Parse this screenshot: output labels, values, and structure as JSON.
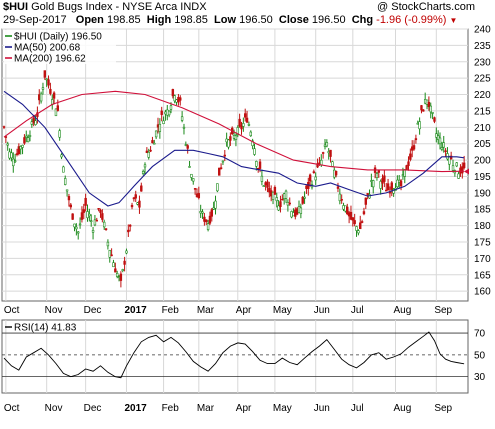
{
  "header": {
    "symbol": "$HUI",
    "name": "Gold Bugs Index - NYSE Arca INDX",
    "watermark": "@ StockCharts.com",
    "date": "29-Sep-2017",
    "open_label": "Open",
    "open_value": "198.85",
    "high_label": "High",
    "high_value": "198.85",
    "low_label": "Low",
    "low_value": "196.50",
    "close_label": "Close",
    "close_value": "196.50",
    "chg_label": "Chg",
    "chg_value": "-1.96 (-0.99%)",
    "chg_arrow": "▼"
  },
  "legend": {
    "price": "$HUI (Daily) 196.50",
    "ma50": "MA(50) 200.68",
    "ma200": "MA(200) 196.62",
    "rsi": "RSI(14) 41.83"
  },
  "colors": {
    "price": "#1a8a1a",
    "price_down": "#c01010",
    "ma50": "#1a1a8c",
    "ma200": "#d0103a",
    "rsi": "#000000",
    "grid": "#d8d8d8",
    "frame": "#666666"
  },
  "chart_data": [
    {
      "type": "candlestick",
      "series": [
        {
          "name": "$HUI (Daily)",
          "last": 196.5
        },
        {
          "name": "MA(50)",
          "last": 200.68
        },
        {
          "name": "MA(200)",
          "last": 196.62
        }
      ],
      "x_tick_labels": [
        "Oct",
        "Nov",
        "Dec",
        "2017",
        "Feb",
        "Mar",
        "Apr",
        "May",
        "Jun",
        "Jul",
        "Aug",
        "Sep"
      ],
      "y_tick_labels": [
        "240",
        "235",
        "230",
        "225",
        "220",
        "215",
        "210",
        "205",
        "200",
        "195",
        "190",
        "185",
        "180",
        "175",
        "170",
        "165",
        "160"
      ],
      "ylim": [
        157,
        240
      ],
      "grid": true,
      "close_points": [
        [
          0,
          210
        ],
        [
          3,
          202
        ],
        [
          6,
          201
        ],
        [
          10,
          205
        ],
        [
          14,
          209
        ],
        [
          18,
          214
        ],
        [
          22,
          226
        ],
        [
          26,
          220
        ],
        [
          29,
          215
        ],
        [
          32,
          197
        ],
        [
          36,
          185
        ],
        [
          40,
          178
        ],
        [
          44,
          186
        ],
        [
          48,
          180
        ],
        [
          52,
          185
        ],
        [
          56,
          175
        ],
        [
          60,
          167
        ],
        [
          63,
          162
        ],
        [
          66,
          173
        ],
        [
          70,
          188
        ],
        [
          73,
          186
        ],
        [
          76,
          200
        ],
        [
          80,
          205
        ],
        [
          84,
          212
        ],
        [
          88,
          215
        ],
        [
          92,
          221
        ],
        [
          95,
          217
        ],
        [
          98,
          206
        ],
        [
          101,
          196
        ],
        [
          104,
          189
        ],
        [
          107,
          183
        ],
        [
          110,
          181
        ],
        [
          113,
          185
        ],
        [
          116,
          196
        ],
        [
          120,
          205
        ],
        [
          124,
          207
        ],
        [
          128,
          210
        ],
        [
          131,
          213
        ],
        [
          134,
          207
        ],
        [
          137,
          198
        ],
        [
          140,
          193
        ],
        [
          143,
          190
        ],
        [
          146,
          188
        ],
        [
          149,
          187
        ],
        [
          152,
          190
        ],
        [
          155,
          185
        ],
        [
          158,
          183
        ],
        [
          161,
          187
        ],
        [
          164,
          192
        ],
        [
          167,
          195
        ],
        [
          170,
          198
        ],
        [
          174,
          205
        ],
        [
          177,
          198
        ],
        [
          180,
          192
        ],
        [
          183,
          187
        ],
        [
          186,
          183
        ],
        [
          189,
          180
        ],
        [
          192,
          179
        ],
        [
          195,
          186
        ],
        [
          198,
          193
        ],
        [
          201,
          196
        ],
        [
          204,
          193
        ],
        [
          207,
          191
        ],
        [
          211,
          193
        ],
        [
          214,
          192
        ],
        [
          217,
          198
        ],
        [
          220,
          202
        ],
        [
          223,
          210
        ],
        [
          226,
          216
        ],
        [
          228,
          219
        ],
        [
          231,
          213
        ],
        [
          233,
          208
        ],
        [
          236,
          205
        ],
        [
          239,
          202
        ],
        [
          242,
          199
        ],
        [
          245,
          197
        ],
        [
          248,
          197
        ]
      ],
      "ma50_points": [
        [
          0,
          221
        ],
        [
          10,
          217
        ],
        [
          22,
          210
        ],
        [
          34,
          200
        ],
        [
          46,
          190
        ],
        [
          56,
          186
        ],
        [
          62,
          187
        ],
        [
          70,
          192
        ],
        [
          80,
          198
        ],
        [
          92,
          203
        ],
        [
          102,
          203
        ],
        [
          110,
          202
        ],
        [
          118,
          201
        ],
        [
          128,
          198
        ],
        [
          138,
          197
        ],
        [
          148,
          196
        ],
        [
          158,
          193
        ],
        [
          168,
          192
        ],
        [
          176,
          193
        ],
        [
          186,
          191
        ],
        [
          196,
          189
        ],
        [
          206,
          190
        ],
        [
          216,
          192
        ],
        [
          226,
          196
        ],
        [
          236,
          201
        ],
        [
          244,
          201
        ],
        [
          248,
          200.7
        ]
      ],
      "ma200_points": [
        [
          0,
          207
        ],
        [
          12,
          212
        ],
        [
          26,
          217
        ],
        [
          42,
          220
        ],
        [
          60,
          221
        ],
        [
          76,
          220
        ],
        [
          96,
          216
        ],
        [
          116,
          211
        ],
        [
          136,
          205
        ],
        [
          156,
          200
        ],
        [
          176,
          198
        ],
        [
          196,
          197
        ],
        [
          216,
          197
        ],
        [
          236,
          196.5
        ],
        [
          248,
          196.6
        ]
      ]
    },
    {
      "type": "line",
      "series": [
        {
          "name": "RSI(14)",
          "last": 41.83
        }
      ],
      "x_tick_labels": [
        "Oct",
        "Nov",
        "Dec",
        "2017",
        "Feb",
        "Mar",
        "Apr",
        "May",
        "Jun",
        "Jul",
        "Aug",
        "Sep"
      ],
      "y_tick_labels": [
        "70",
        "50",
        "30"
      ],
      "ylim": [
        15,
        82
      ],
      "reference_lines": [
        70,
        50,
        30
      ],
      "points": [
        [
          0,
          47
        ],
        [
          4,
          40
        ],
        [
          8,
          36
        ],
        [
          12,
          48
        ],
        [
          16,
          52
        ],
        [
          20,
          56
        ],
        [
          24,
          50
        ],
        [
          28,
          42
        ],
        [
          32,
          33
        ],
        [
          36,
          30
        ],
        [
          40,
          32
        ],
        [
          44,
          37
        ],
        [
          48,
          35
        ],
        [
          52,
          40
        ],
        [
          56,
          34
        ],
        [
          60,
          30
        ],
        [
          63,
          29
        ],
        [
          66,
          40
        ],
        [
          70,
          52
        ],
        [
          74,
          62
        ],
        [
          78,
          66
        ],
        [
          82,
          68
        ],
        [
          86,
          62
        ],
        [
          90,
          66
        ],
        [
          94,
          61
        ],
        [
          98,
          53
        ],
        [
          102,
          44
        ],
        [
          106,
          39
        ],
        [
          110,
          35
        ],
        [
          114,
          42
        ],
        [
          118,
          52
        ],
        [
          122,
          58
        ],
        [
          126,
          61
        ],
        [
          130,
          60
        ],
        [
          134,
          53
        ],
        [
          138,
          45
        ],
        [
          142,
          42
        ],
        [
          146,
          42
        ],
        [
          150,
          47
        ],
        [
          154,
          43
        ],
        [
          158,
          41
        ],
        [
          162,
          47
        ],
        [
          166,
          53
        ],
        [
          170,
          58
        ],
        [
          174,
          64
        ],
        [
          178,
          55
        ],
        [
          182,
          46
        ],
        [
          186,
          41
        ],
        [
          190,
          38
        ],
        [
          194,
          43
        ],
        [
          198,
          50
        ],
        [
          202,
          52
        ],
        [
          206,
          46
        ],
        [
          210,
          48
        ],
        [
          214,
          51
        ],
        [
          218,
          57
        ],
        [
          222,
          62
        ],
        [
          226,
          67
        ],
        [
          229,
          71
        ],
        [
          232,
          63
        ],
        [
          235,
          51
        ],
        [
          238,
          46
        ],
        [
          241,
          44
        ],
        [
          244,
          43
        ],
        [
          248,
          41.83
        ]
      ]
    }
  ]
}
